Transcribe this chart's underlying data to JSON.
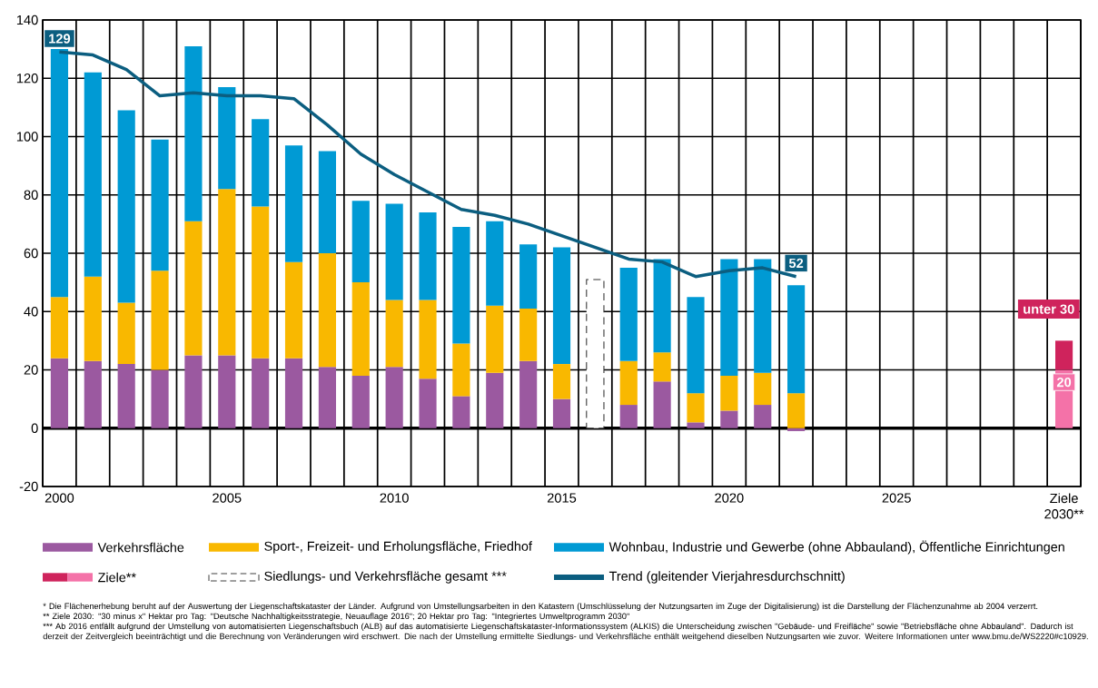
{
  "chart_data": {
    "type": "bar",
    "stacked": true,
    "grid": true,
    "legend": "bottom",
    "categories": [
      "2000",
      null,
      null,
      null,
      null,
      "2005",
      null,
      null,
      null,
      null,
      "2010",
      null,
      null,
      null,
      null,
      "2015",
      null,
      null,
      null,
      null,
      "2020",
      null,
      null,
      null,
      null,
      "2025",
      null,
      null,
      null,
      null,
      "Ziele 2030**"
    ],
    "ylim": [
      -20,
      140
    ],
    "yticks": [
      -20,
      0,
      20,
      40,
      60,
      80,
      100,
      120,
      140
    ],
    "series": [
      {
        "name": "Verkehrsfläche",
        "color": "#9b59a0",
        "values": [
          24,
          23,
          22,
          20,
          25,
          25,
          24,
          24,
          21,
          18,
          21,
          17,
          11,
          19,
          23,
          10,
          null,
          8,
          16,
          2,
          6,
          8,
          -1,
          null,
          null,
          null,
          null,
          null,
          null,
          null,
          null
        ]
      },
      {
        "name": "Sport-, Freizeit- und Erholungsfläche, Friedhof",
        "color": "#f9b800",
        "values": [
          21,
          29,
          21,
          34,
          46,
          57,
          52,
          33,
          39,
          32,
          23,
          27,
          18,
          23,
          18,
          12,
          null,
          15,
          10,
          10,
          12,
          11,
          12,
          null,
          null,
          null,
          null,
          null,
          null,
          null,
          null
        ]
      },
      {
        "name": "Wohnbau, Industrie und Gewerbe (ohne Abbauland), Öffentliche Einrichtungen",
        "color": "#009ad4",
        "values": [
          85,
          70,
          66,
          45,
          60,
          35,
          30,
          40,
          35,
          28,
          33,
          30,
          40,
          29,
          22,
          40,
          null,
          32,
          32,
          33,
          40,
          39,
          37,
          null,
          null,
          null,
          null,
          null,
          null,
          null,
          null
        ]
      },
      {
        "name": "Ziele**",
        "color": "#f472a8",
        "values": [
          null,
          null,
          null,
          null,
          null,
          null,
          null,
          null,
          null,
          null,
          null,
          null,
          null,
          null,
          null,
          null,
          null,
          null,
          null,
          null,
          null,
          null,
          null,
          null,
          null,
          null,
          null,
          null,
          null,
          null,
          20
        ],
        "value_labels": [
          null,
          null,
          null,
          null,
          null,
          null,
          null,
          null,
          null,
          null,
          null,
          null,
          null,
          null,
          null,
          null,
          null,
          null,
          null,
          null,
          null,
          null,
          null,
          null,
          null,
          null,
          null,
          null,
          null,
          null,
          "20"
        ]
      },
      {
        "color": "#cf235c",
        "values": [
          null,
          null,
          null,
          null,
          null,
          null,
          null,
          null,
          null,
          null,
          null,
          null,
          null,
          null,
          null,
          null,
          null,
          null,
          null,
          null,
          null,
          null,
          null,
          null,
          null,
          null,
          null,
          null,
          null,
          null,
          10
        ],
        "value_labels": [
          null,
          null,
          null,
          null,
          null,
          null,
          null,
          null,
          null,
          null,
          null,
          null,
          null,
          null,
          null,
          null,
          null,
          null,
          null,
          null,
          null,
          null,
          null,
          null,
          null,
          null,
          null,
          null,
          null,
          null,
          "unter 30"
        ]
      },
      {
        "name": "Siedlungs- und Verkehrsfläche gesamt ***",
        "color": "#333333",
        "line_style": "dashed",
        "values": [
          null,
          null,
          null,
          null,
          null,
          null,
          null,
          null,
          null,
          null,
          null,
          null,
          null,
          null,
          null,
          null,
          51,
          null,
          null,
          null,
          null,
          null,
          null,
          null,
          null,
          null,
          null,
          null,
          null,
          null,
          null
        ]
      },
      {
        "name": "Trend (gleitender Vierjahresdurchschnitt)",
        "type": "line",
        "color": "#0b5e80",
        "line_style": "solid",
        "values": [
          129,
          128,
          123,
          114,
          115,
          114,
          114,
          113,
          104,
          94,
          87,
          81,
          75,
          73,
          70,
          66,
          62,
          58,
          57,
          52,
          54,
          55,
          52,
          null,
          null,
          null,
          null,
          null,
          null,
          null,
          null
        ],
        "value_labels": [
          "129",
          null,
          null,
          null,
          null,
          null,
          null,
          null,
          null,
          null,
          null,
          null,
          null,
          null,
          null,
          null,
          null,
          null,
          null,
          null,
          null,
          null,
          "52",
          null,
          null,
          null,
          null,
          null,
          null,
          null,
          null
        ]
      }
    ],
    "annotations": [
      "* Die Flächenerhebung beruht auf der Auswertung der Liegenschaftskataster der Länder. Aufgrund von Umstellungsarbeiten in den Katastern (Umschlüsselung der Nutzungsarten im Zuge der Digitalisierung) ist die Darstellung der Flächenzunahme ab 2004 verzerrt.",
      "** Ziele 2030: \"30 minus x\" Hektar pro Tag: \"Deutsche Nachhaltigkeitsstrategie, Neuauflage 2016\"; 20 Hektar pro Tag: \"Integriertes Umweltprogramm 2030\"",
      "*** Ab 2016 entfällt aufgrund der Umstellung von automatisierten Liegenschaftsbuch (ALB) auf das automatisierte Liegenschaftskataster-Informationssystem (ALKIS) die Unterscheidung zwischen \"Gebäude- und Freifläche\" sowie \"Betriebsfläche ohne Abbauland\". Dadurch ist derzeit der Zeitvergleich beeinträchtigt und die Berechnung von Veränderungen wird erschwert. Die nach der Umstellung ermittelte Siedlungs- und Verkehrsfläche enthält weitgehend dieselben Nutzungsarten wie zuvor. Weitere Informationen unter www.bmu.de/WS2220#c10929."
    ]
  }
}
